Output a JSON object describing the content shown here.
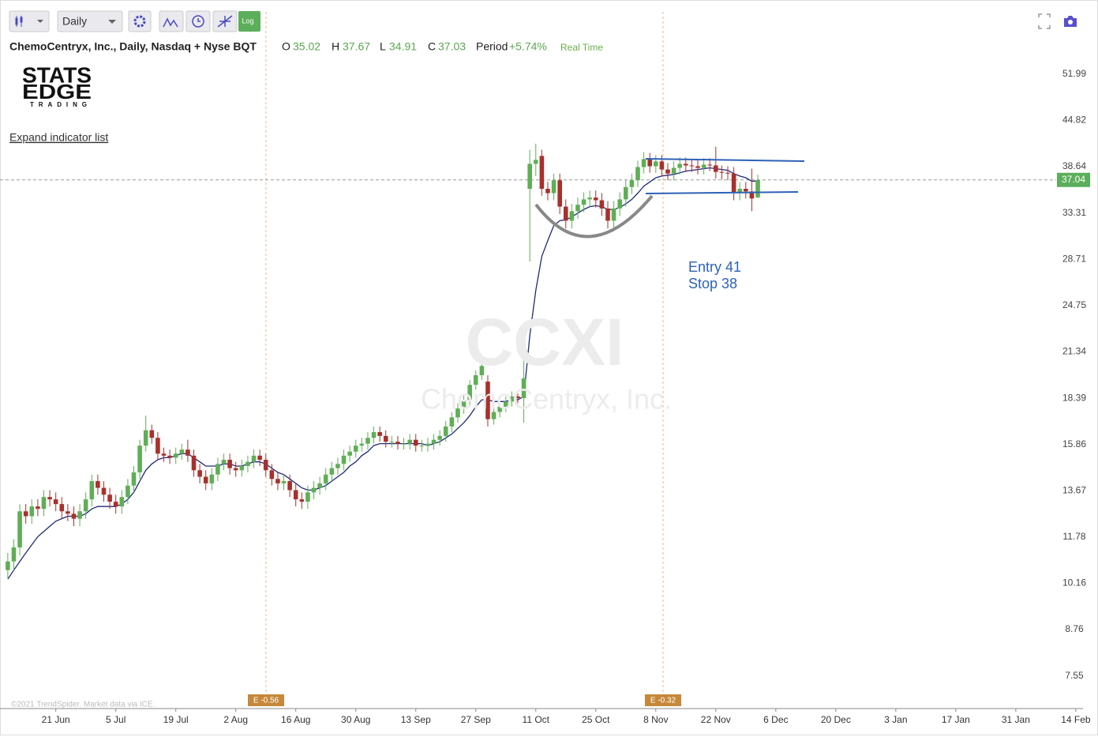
{
  "toolbar": {
    "interval": "Daily",
    "log_button": "Log"
  },
  "logo": [
    "STATS",
    "EDGE",
    "TRADING"
  ],
  "expand_link": "Expand indicator list",
  "copyright": "©2021 TrendSpider. Market data via ICE.",
  "watermark": {
    "symbol": "CCXI",
    "name": "ChemoCentryx, Inc."
  },
  "chart_data": {
    "type": "candlestick",
    "title": "ChemoCentryx, Inc., Daily, Nasdaq + Nyse BQT",
    "ohlc_labels": [
      "O",
      "H",
      "L",
      "C"
    ],
    "period_label": "Period",
    "period_change": "+5.74%",
    "feed": "Real Time",
    "up_color": "#5fae57",
    "down_color": "#a8302c",
    "ma_color": "#1f2a7a",
    "log": true,
    "grid": false,
    "open": [
      10.6,
      10.9,
      11.4,
      12.8,
      12.6,
      13.0,
      12.9,
      13.4,
      13.3,
      13.1,
      12.8,
      12.7,
      12.5,
      12.8,
      13.3,
      14.1,
      13.8,
      13.5,
      13.2,
      13.0,
      13.4,
      13.9,
      14.5,
      15.8,
      16.6,
      16.2,
      15.4,
      15.3,
      15.2,
      15.4,
      15.6,
      15.3,
      14.6,
      14.3,
      14.0,
      14.4,
      14.9,
      15.1,
      14.7,
      14.6,
      14.8,
      15.0,
      15.3,
      15.1,
      14.6,
      14.2,
      14.0,
      14.1,
      13.7,
      13.3,
      13.2,
      13.6,
      13.8,
      14.0,
      14.4,
      14.7,
      14.9,
      15.3,
      15.5,
      15.8,
      15.9,
      16.2,
      16.5,
      16.3,
      16.0,
      16.0,
      15.9,
      15.9,
      16.1,
      15.8,
      15.8,
      15.9,
      16.1,
      16.3,
      16.8,
      17.3,
      17.8,
      18.3,
      19.2,
      19.8,
      19.4,
      17.2,
      17.6,
      17.9,
      18.2,
      18.5,
      18.4,
      36.0,
      39.0,
      40.0,
      36.0,
      35.5,
      37.0,
      34.0,
      32.5,
      33.5,
      34.2,
      34.8,
      35.0,
      34.7,
      33.8,
      32.5,
      33.8,
      34.8,
      36.2,
      37.0,
      38.6,
      39.6,
      38.7,
      39.3,
      38.3,
      37.8,
      38.5,
      39.0,
      38.8,
      38.7,
      38.5,
      38.9,
      38.8,
      38.0,
      37.9,
      37.8,
      35.5,
      36.0,
      35.7,
      35.02
    ],
    "high": [
      11.2,
      11.7,
      13.1,
      13.1,
      13.3,
      13.3,
      13.7,
      13.7,
      13.6,
      13.4,
      13.1,
      13.0,
      13.1,
      13.6,
      14.4,
      14.4,
      14.1,
      13.8,
      13.5,
      13.7,
      14.2,
      14.8,
      16.1,
      17.4,
      16.9,
      16.5,
      15.7,
      15.6,
      15.7,
      15.9,
      16.1,
      15.6,
      14.9,
      14.6,
      14.7,
      15.2,
      15.4,
      15.4,
      15.0,
      15.1,
      15.3,
      15.6,
      15.6,
      15.4,
      14.9,
      14.5,
      14.4,
      14.4,
      14.0,
      13.6,
      13.9,
      14.1,
      14.3,
      14.7,
      15.0,
      15.2,
      15.6,
      15.8,
      16.1,
      16.2,
      16.5,
      16.8,
      16.8,
      16.6,
      16.3,
      16.3,
      16.2,
      16.4,
      16.4,
      16.1,
      16.2,
      16.4,
      16.6,
      17.1,
      17.6,
      18.1,
      18.6,
      19.5,
      20.1,
      20.7,
      19.8,
      17.9,
      18.2,
      18.5,
      18.8,
      18.8,
      21.1,
      40.8,
      41.6,
      40.8,
      36.8,
      37.8,
      37.8,
      34.8,
      34.3,
      35.0,
      35.6,
      35.8,
      35.8,
      35.5,
      34.6,
      34.6,
      35.6,
      37.0,
      37.8,
      39.4,
      40.5,
      40.4,
      40.1,
      40.1,
      39.1,
      39.3,
      39.8,
      39.8,
      39.6,
      39.5,
      39.7,
      39.7,
      41.2,
      38.8,
      38.7,
      38.6,
      36.8,
      36.8,
      38.4,
      37.67
    ],
    "low": [
      10.3,
      10.6,
      11.1,
      12.3,
      12.3,
      12.6,
      12.6,
      13.0,
      12.8,
      12.5,
      12.4,
      12.2,
      12.2,
      12.5,
      13.0,
      13.5,
      13.2,
      12.9,
      12.7,
      12.7,
      13.1,
      13.6,
      14.2,
      15.5,
      15.9,
      15.1,
      15.0,
      14.9,
      14.9,
      15.1,
      15.0,
      14.3,
      14.0,
      13.7,
      13.7,
      14.1,
      14.6,
      14.4,
      14.3,
      14.3,
      14.5,
      14.7,
      14.8,
      14.3,
      13.9,
      13.7,
      13.7,
      13.4,
      13.0,
      12.9,
      12.9,
      13.3,
      13.5,
      13.7,
      14.1,
      14.4,
      14.6,
      15.0,
      15.2,
      15.5,
      15.6,
      15.9,
      16.0,
      15.7,
      15.7,
      15.6,
      15.6,
      15.6,
      15.5,
      15.5,
      15.5,
      15.6,
      15.8,
      16.0,
      16.5,
      17.0,
      17.5,
      18.0,
      18.9,
      19.5,
      16.8,
      16.9,
      17.3,
      17.6,
      17.9,
      18.1,
      17.0,
      28.5,
      37.5,
      35.2,
      34.7,
      34.7,
      33.2,
      31.7,
      31.7,
      32.7,
      33.4,
      34.0,
      33.9,
      33.0,
      31.7,
      31.7,
      33.0,
      34.0,
      35.4,
      36.2,
      37.8,
      37.9,
      37.9,
      37.5,
      37.0,
      37.0,
      37.7,
      38.0,
      38.0,
      37.7,
      37.7,
      38.1,
      37.2,
      37.1,
      37.0,
      34.7,
      34.7,
      34.9,
      33.5,
      34.91
    ],
    "close": [
      10.9,
      11.4,
      12.8,
      12.6,
      13.0,
      12.9,
      13.4,
      13.3,
      13.1,
      12.8,
      12.7,
      12.5,
      12.8,
      13.3,
      14.1,
      13.8,
      13.5,
      13.2,
      13.0,
      13.4,
      13.9,
      14.5,
      15.8,
      16.6,
      16.2,
      15.4,
      15.3,
      15.2,
      15.4,
      15.6,
      15.3,
      14.6,
      14.3,
      14.0,
      14.4,
      14.9,
      15.1,
      14.7,
      14.6,
      14.8,
      15.0,
      15.3,
      15.1,
      14.6,
      14.2,
      14.0,
      14.1,
      13.7,
      13.3,
      13.2,
      13.6,
      13.8,
      14.0,
      14.4,
      14.7,
      14.9,
      15.3,
      15.5,
      15.8,
      15.9,
      16.2,
      16.5,
      16.3,
      16.0,
      16.0,
      15.9,
      15.9,
      16.1,
      15.8,
      15.8,
      15.9,
      16.1,
      16.3,
      16.8,
      17.3,
      17.8,
      18.3,
      19.2,
      19.8,
      20.4,
      17.2,
      17.6,
      17.9,
      18.2,
      18.5,
      18.4,
      19.6,
      39.0,
      39.5,
      36.0,
      35.5,
      37.0,
      34.0,
      32.5,
      33.5,
      34.2,
      34.8,
      35.0,
      34.7,
      33.8,
      32.5,
      33.8,
      34.8,
      36.2,
      37.0,
      38.6,
      39.6,
      38.7,
      39.3,
      38.3,
      37.8,
      38.5,
      39.0,
      38.8,
      38.7,
      38.5,
      38.9,
      38.8,
      38.0,
      37.9,
      37.8,
      35.5,
      36.0,
      35.7,
      34.9,
      37.03
    ],
    "ma": [
      10.3,
      10.6,
      10.9,
      11.2,
      11.5,
      11.8,
      12.0,
      12.2,
      12.4,
      12.5,
      12.6,
      12.6,
      12.6,
      12.7,
      12.9,
      13.0,
      13.0,
      13.0,
      13.0,
      13.1,
      13.3,
      13.6,
      14.1,
      14.6,
      14.9,
      15.1,
      15.2,
      15.2,
      15.3,
      15.4,
      15.4,
      15.2,
      15.0,
      14.8,
      14.8,
      14.8,
      14.9,
      14.9,
      14.8,
      14.8,
      14.9,
      15.0,
      15.0,
      14.9,
      14.7,
      14.5,
      14.4,
      14.2,
      14.0,
      13.8,
      13.7,
      13.7,
      13.8,
      13.9,
      14.1,
      14.3,
      14.5,
      14.8,
      15.0,
      15.3,
      15.5,
      15.8,
      15.9,
      15.9,
      15.9,
      15.9,
      15.9,
      15.9,
      15.9,
      15.9,
      15.8,
      15.9,
      16.0,
      16.2,
      16.4,
      16.7,
      17.0,
      17.4,
      17.9,
      18.3,
      18.3,
      18.2,
      18.2,
      18.2,
      18.3,
      18.3,
      18.5,
      22.5,
      26.0,
      29.0,
      30.5,
      32.0,
      32.5,
      32.6,
      32.9,
      33.3,
      33.7,
      34.0,
      34.1,
      34.0,
      33.7,
      33.7,
      33.9,
      34.3,
      34.8,
      35.5,
      36.3,
      36.8,
      37.3,
      37.5,
      37.6,
      37.7,
      37.9,
      38.1,
      38.2,
      38.3,
      38.4,
      38.5,
      38.4,
      38.3,
      38.2,
      37.8,
      37.5,
      37.3,
      36.9,
      36.9
    ],
    "last_price": 37.04,
    "ylim": [
      6.8,
      64.3
    ],
    "yticks": [
      7.55,
      8.76,
      10.16,
      11.78,
      13.67,
      15.86,
      18.39,
      21.34,
      24.75,
      28.71,
      33.31,
      38.64,
      44.82,
      51.99
    ],
    "xlim": [
      -1.3,
      179.2
    ],
    "xticks": [
      {
        "value": 8,
        "label": "21 Jun"
      },
      {
        "value": 18,
        "label": "5 Jul"
      },
      {
        "value": 28,
        "label": "19 Jul"
      },
      {
        "value": 38,
        "label": "2 Aug"
      },
      {
        "value": 48,
        "label": "16 Aug"
      },
      {
        "value": 58,
        "label": "30 Aug"
      },
      {
        "value": 68,
        "label": "13 Sep"
      },
      {
        "value": 78,
        "label": "27 Sep"
      },
      {
        "value": 88,
        "label": "11 Oct"
      },
      {
        "value": 98,
        "label": "25 Oct"
      },
      {
        "value": 108,
        "label": "8 Nov"
      },
      {
        "value": 118,
        "label": "22 Nov"
      },
      {
        "value": 128,
        "label": "6 Dec"
      },
      {
        "value": 138,
        "label": "20 Dec"
      },
      {
        "value": 148,
        "label": "3 Jan"
      },
      {
        "value": 158,
        "label": "17 Jan"
      },
      {
        "value": 168,
        "label": "31 Jan"
      },
      {
        "value": 178,
        "label": "14 Feb"
      }
    ],
    "annotations": [
      "Entry 41",
      "Stop 38"
    ],
    "events": [
      "E -0.56",
      "E -0.32"
    ]
  }
}
